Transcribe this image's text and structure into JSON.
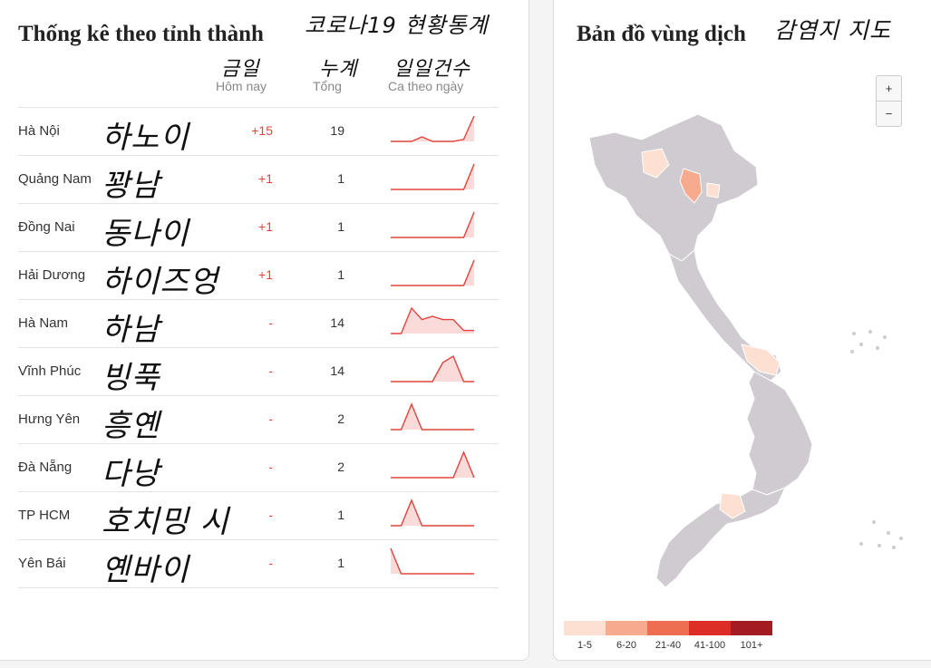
{
  "left": {
    "title": "Thống kê theo tỉnh thành",
    "handwritten_title": "코로나19 현황통계",
    "columns": [
      {
        "hand": "금일",
        "label": "Hôm nay"
      },
      {
        "hand": "누계",
        "label": "Tổng"
      },
      {
        "hand": "일일건수",
        "label": "Ca theo ngày"
      }
    ],
    "rows": [
      {
        "province": "Hà Nội",
        "korean": "하노이",
        "today": "+15",
        "total": "19",
        "trend": [
          0,
          0,
          0,
          0.18,
          0,
          0,
          0,
          0.08,
          1
        ]
      },
      {
        "province": "Quảng Nam",
        "korean": "꽝남",
        "today": "+1",
        "total": "1",
        "trend": [
          0,
          0,
          0,
          0,
          0,
          0,
          0,
          0,
          1
        ]
      },
      {
        "province": "Đồng Nai",
        "korean": "동나이",
        "today": "+1",
        "total": "1",
        "trend": [
          0,
          0,
          0,
          0,
          0,
          0,
          0,
          0,
          1
        ]
      },
      {
        "province": "Hải Dương",
        "korean": "하이즈엉",
        "today": "+1",
        "total": "1",
        "trend": [
          0,
          0,
          0,
          0,
          0,
          0,
          0,
          0,
          1
        ]
      },
      {
        "province": "Hà Nam",
        "korean": "하남",
        "today": "-",
        "total": "14",
        "trend": [
          0,
          0,
          1,
          0.55,
          0.68,
          0.55,
          0.55,
          0.12,
          0.12
        ]
      },
      {
        "province": "Vĩnh Phúc",
        "korean": "빙푹",
        "today": "-",
        "total": "14",
        "trend": [
          0,
          0,
          0,
          0,
          0,
          0.75,
          1,
          0,
          0
        ]
      },
      {
        "province": "Hưng Yên",
        "korean": "흥옌",
        "today": "-",
        "total": "2",
        "trend": [
          0,
          0,
          1,
          0,
          0,
          0,
          0,
          0,
          0
        ]
      },
      {
        "province": "Đà Nẵng",
        "korean": "다낭",
        "today": "-",
        "total": "2",
        "trend": [
          0,
          0,
          0,
          0,
          0,
          0,
          0,
          1,
          0
        ]
      },
      {
        "province": "TP HCM",
        "korean": "호치밍 시",
        "today": "-",
        "total": "1",
        "trend": [
          0,
          0,
          1,
          0,
          0,
          0,
          0,
          0,
          0
        ]
      },
      {
        "province": "Yên Bái",
        "korean": "옌바이",
        "today": "-",
        "total": "1",
        "trend": [
          1,
          0,
          0,
          0,
          0,
          0,
          0,
          0,
          0
        ]
      }
    ]
  },
  "right": {
    "title": "Bản đồ vùng dịch",
    "handwritten_title": "감염지 지도",
    "zoom_in": "+",
    "zoom_out": "−",
    "legend": [
      {
        "label": "1-5",
        "color": "#fde0d2"
      },
      {
        "label": "6-20",
        "color": "#f6ab8e"
      },
      {
        "label": "21-40",
        "color": "#ee6e51"
      },
      {
        "label": "41-100",
        "color": "#dc2d27"
      },
      {
        "label": "101+",
        "color": "#a51b22"
      }
    ],
    "map_colors": {
      "land": "#cfcbd0",
      "border": "#ffffff",
      "level1": "#fde0d2",
      "level2": "#f6ab8e"
    }
  },
  "theme": {
    "accent": "#e0443c",
    "spark_fill": "#fbdada"
  }
}
